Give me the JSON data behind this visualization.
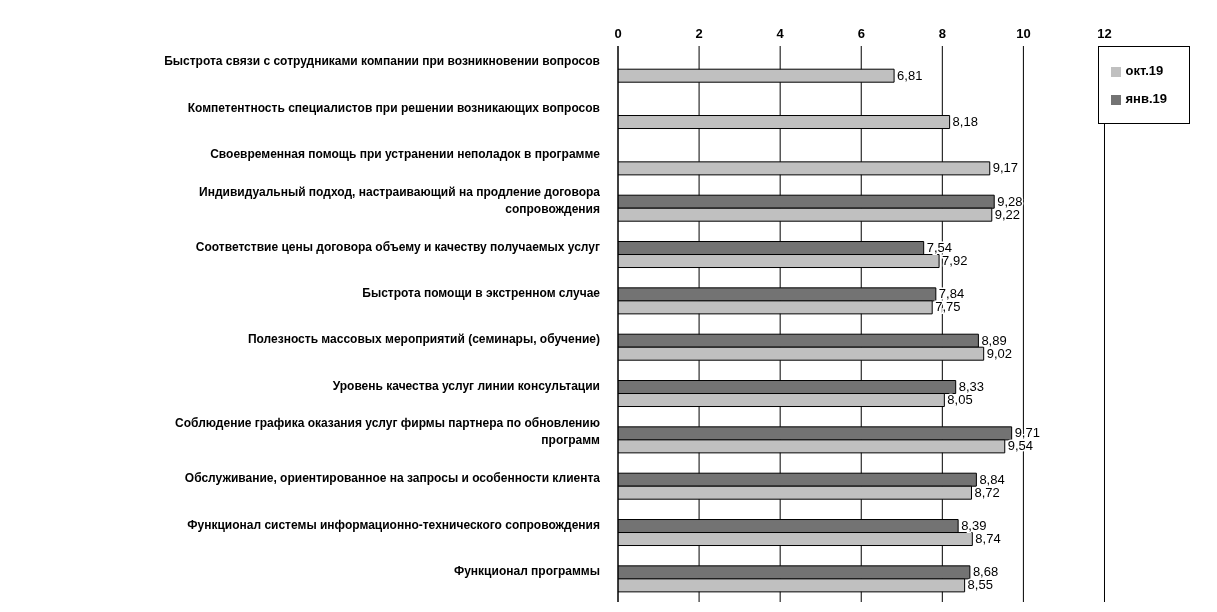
{
  "chart_data": {
    "type": "bar",
    "orientation": "horizontal",
    "categories": [
      "Быстрота связи с сотрудниками компании при возникновении вопросов",
      "Компетентность специалистов при решении возникающих вопросов",
      "Своевременная помощь при устранении неполадок в программе",
      "Индивидуальный подход, настраивающий на продление договора сопровождения",
      "Соответствие цены договора объему и качеству получаемых услуг",
      "Быстрота помощи в экстренном случае",
      "Полезность массовых мероприятий (семинары, обучение)",
      "Уровень качества услуг линии консультации",
      "Соблюдение графика оказания услуг фирмы партнера по обновлению программ",
      "Обслуживание, ориентированное на запросы и особенности клиента",
      "Функционал системы информационно-технического сопровождения",
      "Функционал программы"
    ],
    "series": [
      {
        "name": "янв.19",
        "color": "#737373",
        "values": [
          null,
          null,
          null,
          9.28,
          7.54,
          7.84,
          8.89,
          8.33,
          9.71,
          8.84,
          8.39,
          8.68
        ],
        "value_labels": [
          null,
          null,
          null,
          "9,28",
          "7,54",
          "7,84",
          "8,89",
          "8,33",
          "9,71",
          "8,84",
          "8,39",
          "8,68"
        ]
      },
      {
        "name": "окт.19",
        "color": "#c0c0c0",
        "values": [
          6.81,
          8.18,
          9.17,
          9.22,
          7.92,
          7.75,
          9.02,
          8.05,
          9.54,
          8.72,
          8.74,
          8.55
        ],
        "value_labels": [
          "6,81",
          "8,18",
          "9,17",
          "9,22",
          "7,92",
          "7,75",
          "9,02",
          "8,05",
          "9,54",
          "8,72",
          "8,74",
          "8,55"
        ]
      }
    ],
    "xlim": [
      0,
      12
    ],
    "xticks": [
      0,
      2,
      4,
      6,
      8,
      10,
      12
    ],
    "grid": "x",
    "legend": "top right"
  }
}
